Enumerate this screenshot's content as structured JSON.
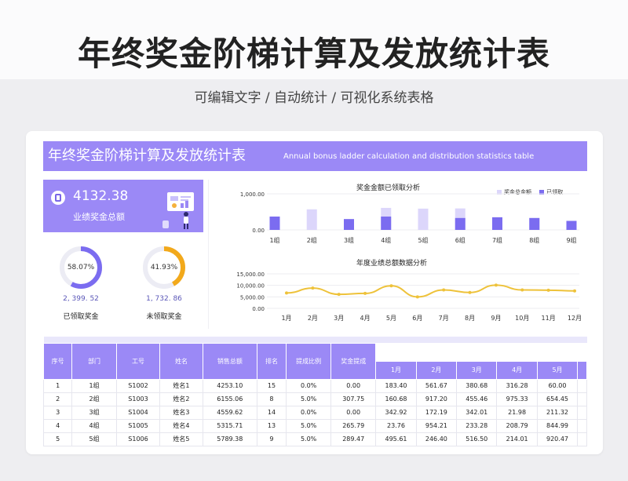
{
  "page": {
    "title": "年终奖金阶梯计算及发放统计表",
    "subtitle": "可编辑文字 / 自动统计 / 可视化系统表格"
  },
  "header": {
    "title_cn": "年终奖金阶梯计算及发放统计表",
    "title_en": "Annual bonus ladder calculation and distribution statistics table"
  },
  "kpi": {
    "value": "4132.38",
    "label": "业绩奖金总额",
    "icon": "wallet-icon"
  },
  "rings": [
    {
      "percent": "58.07%",
      "fraction": 0.5807,
      "amount": "2, 399. 52",
      "label": "已领取奖金",
      "color": "#7b6cf0"
    },
    {
      "percent": "41.93%",
      "fraction": 0.4193,
      "amount": "1, 732. 86",
      "label": "未领取奖金",
      "color": "#f2a91b"
    }
  ],
  "colors": {
    "accent": "#9b89f6",
    "bar_total": "#dcd6fb",
    "bar_claimed": "#7b6cf0",
    "line": "#eec23a"
  },
  "chart_data": [
    {
      "type": "bar",
      "title": "奖金金额已领取分析",
      "categories": [
        "1组",
        "2组",
        "3组",
        "4组",
        "5组",
        "6组",
        "7组",
        "8组",
        "9组"
      ],
      "series": [
        {
          "name": "奖金总金额",
          "values": [
            370,
            570,
            300,
            610,
            590,
            595,
            350,
            330,
            250
          ]
        },
        {
          "name": "已领取",
          "values": [
            370,
            0,
            300,
            370,
            0,
            330,
            350,
            330,
            250
          ]
        }
      ],
      "ytick_labels": [
        "1,000.00",
        "0.00"
      ],
      "ylim": [
        0,
        1000
      ],
      "legend": "top-right"
    },
    {
      "type": "line",
      "title": "年度业绩总额数据分析",
      "categories": [
        "1月",
        "2月",
        "3月",
        "4月",
        "5月",
        "6月",
        "7月",
        "8月",
        "9月",
        "10月",
        "11月",
        "12月"
      ],
      "series": [
        {
          "values": [
            6700,
            8800,
            6100,
            6500,
            9800,
            5000,
            8000,
            6900,
            10100,
            8000,
            7900,
            7600
          ]
        }
      ],
      "ytick_labels": [
        "15,000.00",
        "10,000.00",
        "5,000.00",
        "0.00"
      ],
      "ylim": [
        0,
        15000
      ]
    }
  ],
  "table": {
    "headers": [
      "序号",
      "部门",
      "工号",
      "姓名",
      "销售总额",
      "排名",
      "提成比例",
      "奖金提成"
    ],
    "months": [
      "1月",
      "2月",
      "3月",
      "4月",
      "5月"
    ],
    "rows": [
      [
        "1",
        "1组",
        "S1002",
        "姓名1",
        "4253.10",
        "15",
        "0.0%",
        "0.00",
        "183.40",
        "561.67",
        "380.68",
        "316.28",
        "60.00"
      ],
      [
        "2",
        "2组",
        "S1003",
        "姓名2",
        "6155.06",
        "8",
        "5.0%",
        "307.75",
        "160.68",
        "917.20",
        "455.46",
        "975.33",
        "654.45"
      ],
      [
        "3",
        "3组",
        "S1004",
        "姓名3",
        "4559.62",
        "14",
        "0.0%",
        "0.00",
        "342.92",
        "172.19",
        "342.01",
        "21.98",
        "211.32"
      ],
      [
        "4",
        "4组",
        "S1005",
        "姓名4",
        "5315.71",
        "13",
        "5.0%",
        "265.79",
        "23.76",
        "954.21",
        "233.28",
        "208.79",
        "844.99"
      ],
      [
        "5",
        "5组",
        "S1006",
        "姓名5",
        "5789.38",
        "9",
        "5.0%",
        "289.47",
        "495.61",
        "246.40",
        "516.50",
        "214.01",
        "920.47"
      ]
    ]
  }
}
